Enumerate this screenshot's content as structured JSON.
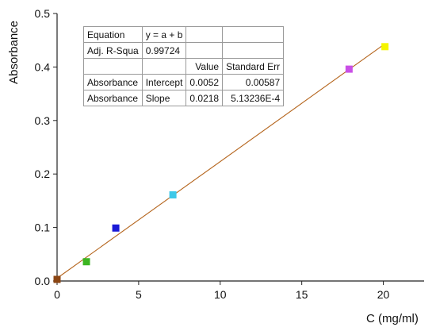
{
  "chart_data": {
    "type": "scatter",
    "xlabel": "C (mg/ml)",
    "ylabel": "Absorbance",
    "xlim": [
      0,
      22.5
    ],
    "ylim": [
      0,
      0.5
    ],
    "x_ticks": [
      "0",
      "5",
      "10",
      "15",
      "20"
    ],
    "y_ticks": [
      "0.0",
      "0.1",
      "0.2",
      "0.3",
      "0.4",
      "0.5"
    ],
    "series": [
      {
        "points": [
          {
            "x": 0,
            "y": 0.003,
            "color": "#8b4513"
          },
          {
            "x": 1.8,
            "y": 0.036,
            "color": "#3cb521"
          },
          {
            "x": 3.6,
            "y": 0.099,
            "color": "#1a1ad6"
          },
          {
            "x": 7.1,
            "y": 0.161,
            "color": "#3ec8e8"
          },
          {
            "x": 17.9,
            "y": 0.396,
            "color": "#c94fe6"
          },
          {
            "x": 20.1,
            "y": 0.438,
            "color": "#f5f500"
          }
        ]
      }
    ],
    "fit_line": {
      "intercept": 0.0052,
      "slope": 0.0218,
      "x_range": [
        0,
        20.1
      ],
      "color": "#b5651d"
    },
    "stats_table": [
      [
        "Equation",
        "y = a + b",
        "",
        ""
      ],
      [
        "Adj. R-Squa",
        "0.99724",
        "",
        ""
      ],
      [
        "",
        "",
        "Value",
        "Standard Err"
      ],
      [
        "Absorbance",
        "Intercept",
        "0.0052",
        "0.00587"
      ],
      [
        "Absorbance",
        "Slope",
        "0.0218",
        "5.13236E-4"
      ]
    ]
  }
}
